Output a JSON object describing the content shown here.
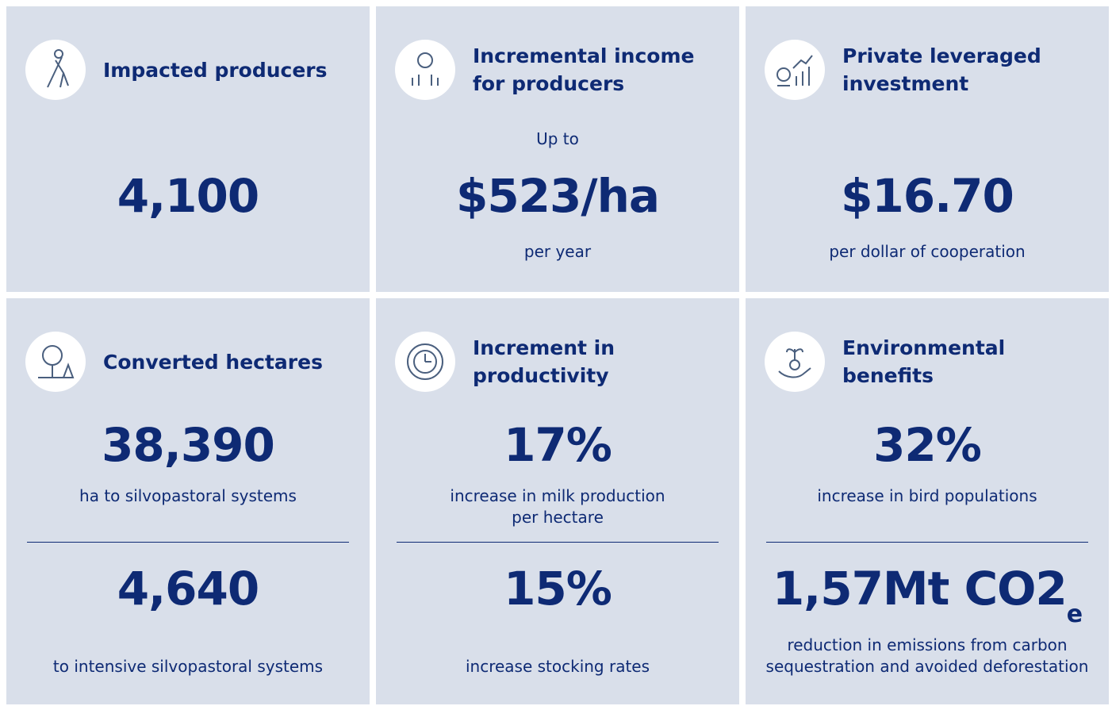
{
  "cards": [
    {
      "title": "Impacted producers",
      "metrics": [
        {
          "value": "4,100"
        }
      ]
    },
    {
      "title": "Incremental income for producers",
      "metrics": [
        {
          "pre": "Up to",
          "value": "$523/ha",
          "caption": "per year"
        }
      ]
    },
    {
      "title": "Private leveraged investment",
      "metrics": [
        {
          "value": "$16.70",
          "caption": "per dollar of cooperation"
        }
      ]
    },
    {
      "title": "Converted hectares",
      "metrics": [
        {
          "value": "38,390",
          "caption": "ha to silvopastoral systems"
        },
        {
          "value": "4,640",
          "caption": "to intensive silvopastoral systems"
        }
      ]
    },
    {
      "title": "Increment in productivity",
      "metrics": [
        {
          "value": "17%",
          "caption": "increase in milk production per hectare"
        },
        {
          "value": "15%",
          "caption": "increase stocking rates"
        }
      ]
    },
    {
      "title": "Environmental benefits",
      "metrics": [
        {
          "value": "32%",
          "caption": "increase in bird populations"
        },
        {
          "value": "1,57Mt CO2",
          "sub": "e",
          "caption": "reduction in emissions from carbon sequestration and avoided deforestation"
        }
      ]
    }
  ]
}
